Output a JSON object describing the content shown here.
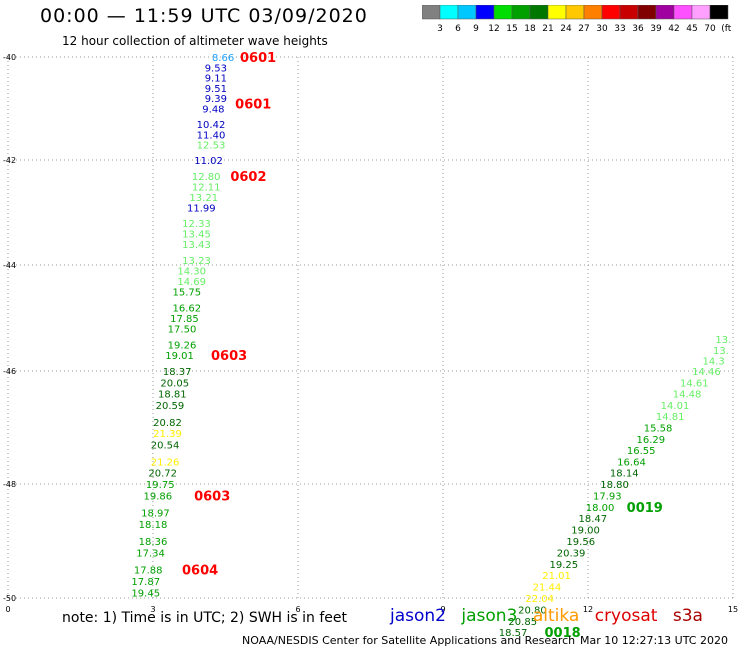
{
  "title": "00:00 — 11:59 UTC 03/09/2020",
  "subtitle": "12 hour collection of altimeter wave heights",
  "legend": {
    "colors": [
      "#808080",
      "#00ffff",
      "#00c8ff",
      "#0000ff",
      "#00dd00",
      "#00a000",
      "#007800",
      "#ffff00",
      "#ffc800",
      "#ff8000",
      "#ff0000",
      "#c80000",
      "#800000",
      "#a000a0",
      "#ff50ff",
      "#ffa0ff",
      "#000000"
    ],
    "labels": [
      "3",
      "6",
      "9",
      "12",
      "15",
      "18",
      "21",
      "24",
      "27",
      "30",
      "33",
      "36",
      "39",
      "42",
      "45",
      "70",
      "(ft)"
    ]
  },
  "note": "note:  1) Time is in UTC; 2) SWH is in feet",
  "satellites": [
    {
      "name": "jason2",
      "color": "#0000cc"
    },
    {
      "name": "jason3",
      "color": "#00a000"
    },
    {
      "name": "altika",
      "color": "#ff9900"
    },
    {
      "name": "cryosat",
      "color": "#dd0000"
    },
    {
      "name": "s3a",
      "color": "#aa0000"
    }
  ],
  "credit": "NOAA/NESDIS Center for Satellite Applications and Research",
  "timestamp": "Mar 10 12:27:13 UTC 2020",
  "chart_data": {
    "type": "scatter",
    "title": "00:00 — 11:59 UTC 03/09/2020",
    "xlabel": "",
    "ylabel": "",
    "xlim": [
      0,
      15
    ],
    "ylim": [
      -50,
      -40
    ],
    "xticks": [
      "0",
      "3",
      "6",
      "9",
      "12",
      "15"
    ],
    "yticks": [
      "-40",
      "-42",
      "-44",
      "-46",
      "-48",
      "-50"
    ],
    "grid": "dotted",
    "series": [
      {
        "values": [
          {
            "x": 4.45,
            "y": -40.0,
            "v": "8.66",
            "c": "#1fa0ff"
          },
          {
            "x": 4.3,
            "y": -40.2,
            "v": "9.53",
            "c": "#0000c0"
          },
          {
            "x": 4.3,
            "y": -40.4,
            "v": "9.11",
            "c": "#0000c0"
          },
          {
            "x": 4.3,
            "y": -40.6,
            "v": "9.51",
            "c": "#0000c0"
          },
          {
            "x": 4.3,
            "y": -40.8,
            "v": "9.39",
            "c": "#0000c0"
          },
          {
            "x": 4.25,
            "y": -41.0,
            "v": "9.48",
            "c": "#0000c0"
          },
          {
            "x": 4.2,
            "y": -41.3,
            "v": "10.42",
            "c": "#0000c0"
          },
          {
            "x": 4.2,
            "y": -41.5,
            "v": "11.40",
            "c": "#0000c0"
          },
          {
            "x": 4.2,
            "y": -41.7,
            "v": "12.53",
            "c": "#66ee66"
          },
          {
            "x": 4.15,
            "y": -42.0,
            "v": "11.02",
            "c": "#0000c0"
          },
          {
            "x": 4.1,
            "y": -42.3,
            "v": "12.80",
            "c": "#66ee66"
          },
          {
            "x": 4.1,
            "y": -42.5,
            "v": "12.11",
            "c": "#66ee66"
          },
          {
            "x": 4.05,
            "y": -42.7,
            "v": "13.21",
            "c": "#66ee66"
          },
          {
            "x": 4.0,
            "y": -42.9,
            "v": "11.99",
            "c": "#0000c0"
          },
          {
            "x": 3.9,
            "y": -43.2,
            "v": "12.33",
            "c": "#66ee66"
          },
          {
            "x": 3.9,
            "y": -43.4,
            "v": "13.45",
            "c": "#66ee66"
          },
          {
            "x": 3.9,
            "y": -43.6,
            "v": "13.43",
            "c": "#66ee66"
          },
          {
            "x": 3.9,
            "y": -43.9,
            "v": "13.23",
            "c": "#66ee66"
          },
          {
            "x": 3.8,
            "y": -44.1,
            "v": "14.30",
            "c": "#66ee66"
          },
          {
            "x": 3.8,
            "y": -44.3,
            "v": "14.69",
            "c": "#66ee66"
          },
          {
            "x": 3.7,
            "y": -44.5,
            "v": "15.75",
            "c": "#00a000"
          },
          {
            "x": 3.7,
            "y": -44.8,
            "v": "16.62",
            "c": "#00a000"
          },
          {
            "x": 3.65,
            "y": -45.0,
            "v": "17.85",
            "c": "#00a000"
          },
          {
            "x": 3.6,
            "y": -45.2,
            "v": "17.50",
            "c": "#00a000"
          },
          {
            "x": 3.6,
            "y": -45.5,
            "v": "19.26",
            "c": "#00a000"
          },
          {
            "x": 3.55,
            "y": -45.7,
            "v": "19.01",
            "c": "#00a000"
          },
          {
            "x": 3.5,
            "y": -46.0,
            "v": "18.37",
            "c": "#006600"
          },
          {
            "x": 3.45,
            "y": -46.2,
            "v": "20.05",
            "c": "#006600"
          },
          {
            "x": 3.4,
            "y": -46.4,
            "v": "18.81",
            "c": "#006600"
          },
          {
            "x": 3.35,
            "y": -46.6,
            "v": "20.59",
            "c": "#006600"
          },
          {
            "x": 3.3,
            "y": -46.9,
            "v": "20.82",
            "c": "#006600"
          },
          {
            "x": 3.3,
            "y": -47.1,
            "v": "21.39",
            "c": "#ffee00"
          },
          {
            "x": 3.25,
            "y": -47.3,
            "v": "20.54",
            "c": "#006600"
          },
          {
            "x": 3.25,
            "y": -47.6,
            "v": "21.26",
            "c": "#ffee00"
          },
          {
            "x": 3.2,
            "y": -47.8,
            "v": "20.72",
            "c": "#006600"
          },
          {
            "x": 3.15,
            "y": -48.0,
            "v": "19.75",
            "c": "#00a000"
          },
          {
            "x": 3.1,
            "y": -48.2,
            "v": "19.86",
            "c": "#00a000"
          },
          {
            "x": 3.05,
            "y": -48.5,
            "v": "18.97",
            "c": "#00a000"
          },
          {
            "x": 3.0,
            "y": -48.7,
            "v": "18.18",
            "c": "#00a000"
          },
          {
            "x": 3.0,
            "y": -49.0,
            "v": "18.36",
            "c": "#00a000"
          },
          {
            "x": 2.95,
            "y": -49.2,
            "v": "17.34",
            "c": "#00a000"
          },
          {
            "x": 2.9,
            "y": -49.5,
            "v": "17.88",
            "c": "#00a000"
          },
          {
            "x": 2.85,
            "y": -49.7,
            "v": "17.87",
            "c": "#00a000"
          },
          {
            "x": 2.85,
            "y": -49.9,
            "v": "19.45",
            "c": "#00a000"
          }
        ]
      },
      {
        "values": [
          {
            "x": 14.8,
            "y": -45.4,
            "v": "13.",
            "c": "#66ee66"
          },
          {
            "x": 14.75,
            "y": -45.6,
            "v": "13.",
            "c": "#66ee66"
          },
          {
            "x": 14.6,
            "y": -45.8,
            "v": "14.3",
            "c": "#66ee66"
          },
          {
            "x": 14.45,
            "y": -46.0,
            "v": "14.46",
            "c": "#66ee66"
          },
          {
            "x": 14.2,
            "y": -46.2,
            "v": "14.61",
            "c": "#66ee66"
          },
          {
            "x": 14.05,
            "y": -46.4,
            "v": "14.48",
            "c": "#66ee66"
          },
          {
            "x": 13.8,
            "y": -46.6,
            "v": "14.01",
            "c": "#66ee66"
          },
          {
            "x": 13.7,
            "y": -46.8,
            "v": "14.81",
            "c": "#66ee66"
          },
          {
            "x": 13.45,
            "y": -47.0,
            "v": "15.58",
            "c": "#00a000"
          },
          {
            "x": 13.3,
            "y": -47.2,
            "v": "16.29",
            "c": "#00a000"
          },
          {
            "x": 13.1,
            "y": -47.4,
            "v": "16.55",
            "c": "#00a000"
          },
          {
            "x": 12.9,
            "y": -47.6,
            "v": "16.64",
            "c": "#00a000"
          },
          {
            "x": 12.75,
            "y": -47.8,
            "v": "18.14",
            "c": "#006600"
          },
          {
            "x": 12.55,
            "y": -48.0,
            "v": "18.80",
            "c": "#006600"
          },
          {
            "x": 12.4,
            "y": -48.2,
            "v": "17.93",
            "c": "#00a000"
          },
          {
            "x": 12.25,
            "y": -48.4,
            "v": "18.00",
            "c": "#00a000"
          },
          {
            "x": 12.1,
            "y": -48.6,
            "v": "18.47",
            "c": "#006600"
          },
          {
            "x": 11.95,
            "y": -48.8,
            "v": "19.00",
            "c": "#006600"
          },
          {
            "x": 11.85,
            "y": -49.0,
            "v": "19.56",
            "c": "#006600"
          },
          {
            "x": 11.65,
            "y": -49.2,
            "v": "20.39",
            "c": "#006600"
          },
          {
            "x": 11.5,
            "y": -49.4,
            "v": "19.25",
            "c": "#006600"
          },
          {
            "x": 11.35,
            "y": -49.6,
            "v": "21.01",
            "c": "#ffee00"
          },
          {
            "x": 11.15,
            "y": -49.8,
            "v": "21.44",
            "c": "#ffee00"
          },
          {
            "x": 11.0,
            "y": -50.0,
            "v": "22.04",
            "c": "#ffee00"
          },
          {
            "x": 10.85,
            "y": -50.2,
            "v": "20.80",
            "c": "#006600"
          },
          {
            "x": 10.65,
            "y": -50.4,
            "v": "20.85",
            "c": "#006600"
          },
          {
            "x": 10.45,
            "y": -50.6,
            "v": "18.57",
            "c": "#006600"
          }
        ]
      }
    ],
    "time_labels": [
      {
        "x": 4.8,
        "y": -40.0,
        "t": "0601",
        "c": "#ff0000"
      },
      {
        "x": 4.7,
        "y": -40.9,
        "t": "0601",
        "c": "#ff0000"
      },
      {
        "x": 4.6,
        "y": -42.3,
        "t": "0602",
        "c": "#ff0000"
      },
      {
        "x": 4.2,
        "y": -45.7,
        "t": "0603",
        "c": "#ff0000"
      },
      {
        "x": 3.85,
        "y": -48.2,
        "t": "0603",
        "c": "#ff0000"
      },
      {
        "x": 3.6,
        "y": -49.5,
        "t": "0604",
        "c": "#ff0000"
      },
      {
        "x": 12.8,
        "y": -48.4,
        "t": "0019",
        "c": "#00a000"
      },
      {
        "x": 11.1,
        "y": -50.6,
        "t": "0018",
        "c": "#00a000"
      }
    ]
  }
}
